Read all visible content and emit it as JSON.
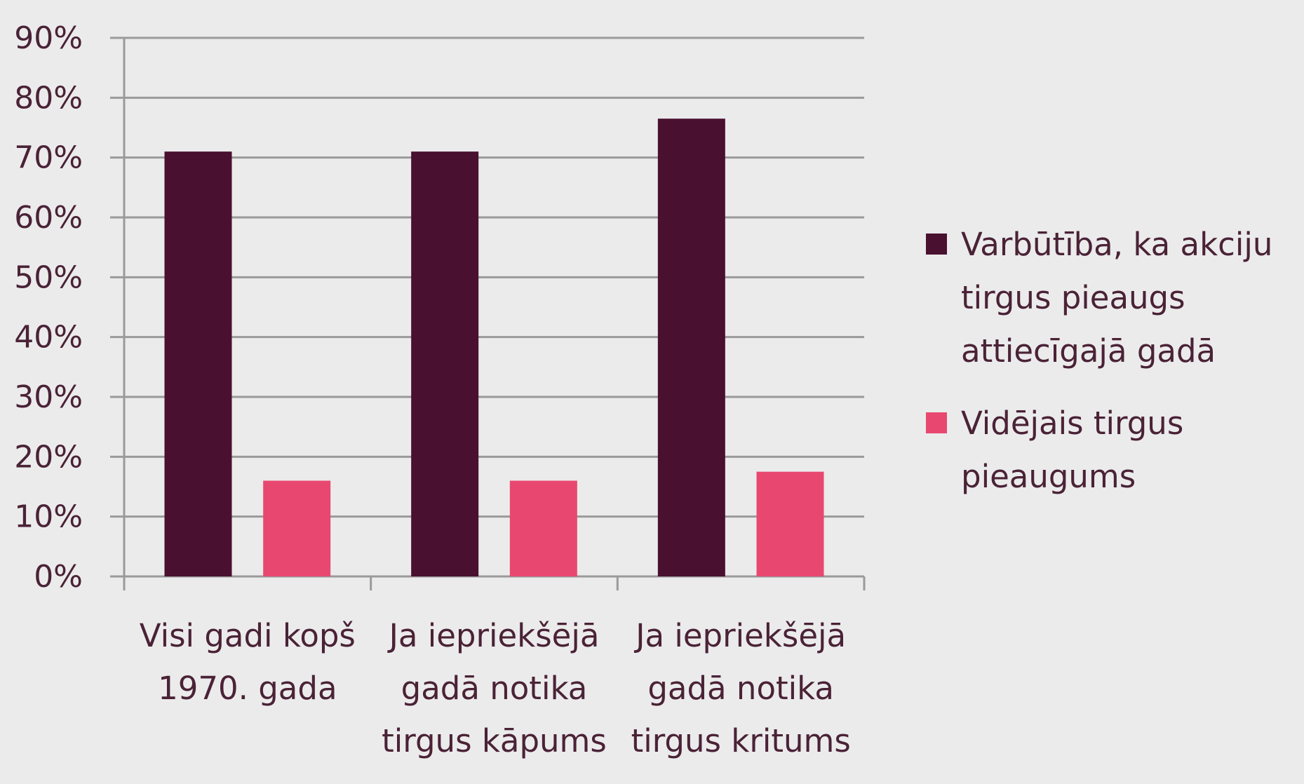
{
  "chart_data": {
    "type": "bar",
    "title": "",
    "xlabel": "",
    "ylabel": "",
    "ylim": [
      0,
      90
    ],
    "ytick_values": [
      0,
      10,
      20,
      30,
      40,
      50,
      60,
      70,
      80,
      90
    ],
    "ytick_labels": [
      "0%",
      "10%",
      "20%",
      "30%",
      "40%",
      "50%",
      "60%",
      "70%",
      "80%",
      "90%"
    ],
    "grid": true,
    "legend_position": "right",
    "categories": [
      [
        "Visi gadi kopš",
        "1970. gada"
      ],
      [
        "Ja iepriekšējā",
        "gadā notika",
        "tirgus kāpums"
      ],
      [
        "Ja iepriekšējā",
        "gadā notika",
        "tirgus kritums"
      ]
    ],
    "series": [
      {
        "name": [
          "Varbūtība, ka akciju",
          "tirgus pieaugs",
          "attiecīgajā gadā"
        ],
        "color": "#4a1030",
        "values": [
          71,
          71,
          76.5
        ]
      },
      {
        "name": [
          "Vidējais tirgus",
          "pieaugums"
        ],
        "color": "#e84870",
        "values": [
          16,
          16,
          17.5
        ]
      }
    ]
  },
  "colors": {
    "background": "#ebebeb",
    "grid": "#9a9a9a",
    "text": "#4a2236"
  }
}
